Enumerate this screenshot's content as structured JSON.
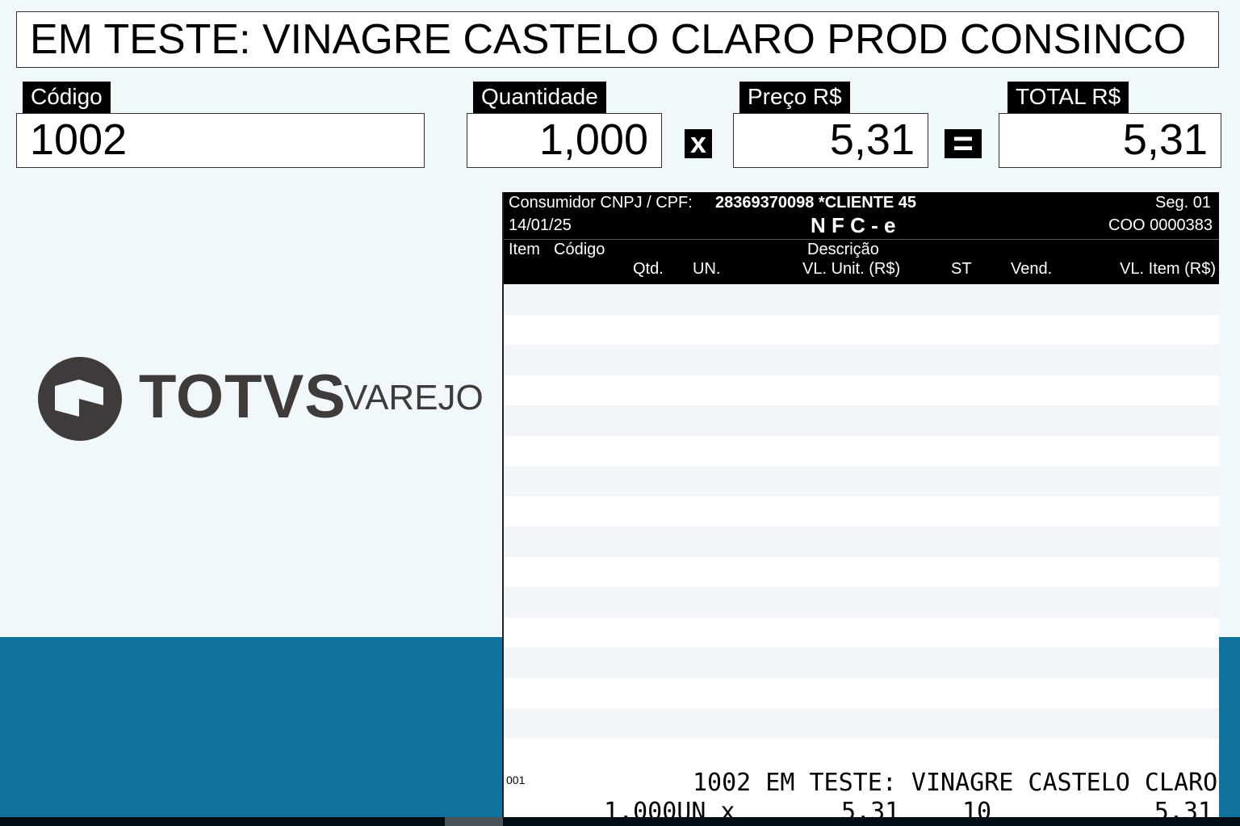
{
  "product_description": "EM TESTE: VINAGRE CASTELO CLARO  PROD CONSINCO",
  "fields": {
    "codigo": {
      "label": "Código",
      "value": "1002"
    },
    "quantidade": {
      "label": "Quantidade",
      "value": "1,000"
    },
    "multiply_symbol": "x",
    "preco": {
      "label": "Preço R$",
      "value": "5,31"
    },
    "equals_symbol": "=",
    "total": {
      "label": "TOTAL R$",
      "value": "5,31"
    }
  },
  "logo": {
    "brand": "TOTVS",
    "product": "VAREJO"
  },
  "receipt": {
    "consumer_label": "Consumidor CNPJ / CPF:",
    "consumer_value": "28369370098 *CLIENTE 45",
    "seg": "Seg. 01",
    "date": "14/01/25",
    "doc_type": "N F C - e",
    "coo": "COO 0000383",
    "columns": {
      "item": "Item",
      "codigo": "Código",
      "descricao": "Descrição",
      "qtd": "Qtd.",
      "un": "UN.",
      "vl_unit": "VL. Unit. (R$)",
      "st": "ST",
      "vend": "Vend.",
      "vl_item": "VL. Item (R$)"
    },
    "items": [
      {
        "item": "001",
        "line1": "1002 EM TESTE: VINAGRE CASTELO CLARO",
        "qty_un": "1,000UN x",
        "unit": "5,31",
        "st": "10",
        "total": "5,31"
      }
    ]
  },
  "colors": {
    "background": "#f0f8fb",
    "accent_blue": "#0e729c",
    "logo_gray": "#3f3b3a"
  }
}
